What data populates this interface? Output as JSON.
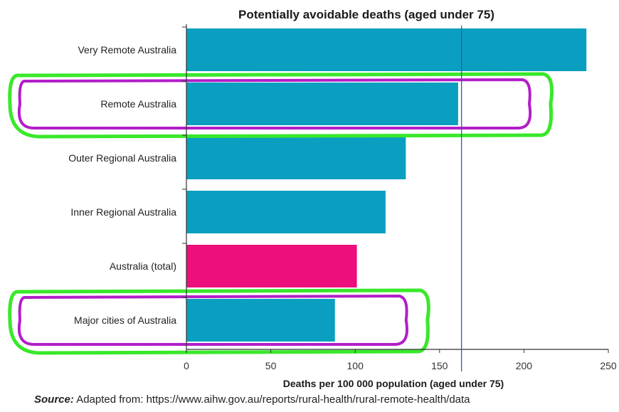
{
  "chart_data": {
    "type": "bar",
    "orientation": "horizontal",
    "title": "Potentially avoidable deaths (aged under 75)",
    "xlabel": "Deaths per 100 000 population (aged under 75)",
    "ylabel": "",
    "categories": [
      "Very Remote Australia",
      "Remote Australia",
      "Outer Regional Australia",
      "Inner Regional Australia",
      "Australia (total)",
      "Major cities of Australia"
    ],
    "values": [
      237,
      161,
      130,
      118,
      101,
      88
    ],
    "bar_colors": [
      "#0a9fc0",
      "#0a9fc0",
      "#0a9fc0",
      "#0a9fc0",
      "#ec0f7c",
      "#0a9fc0"
    ],
    "xlim": [
      0,
      250
    ],
    "xticks": [
      "0",
      "50",
      "100",
      "150",
      "200",
      "250"
    ],
    "reference_line_x": 163,
    "highlighted_categories": [
      "Remote Australia",
      "Major cities of Australia"
    ],
    "grid": false
  },
  "source": {
    "prefix": "Source:",
    "text": " Adapted from: https://www.aihw.gov.au/reports/rural-health/rural-remote-health/data"
  },
  "colors": {
    "bar": "#0a9fc0",
    "total_bar": "#ec0f7c",
    "highlight_outer": "#39e82a",
    "highlight_inner": "#b21ec8",
    "reference_line": "#2a5fa8"
  }
}
